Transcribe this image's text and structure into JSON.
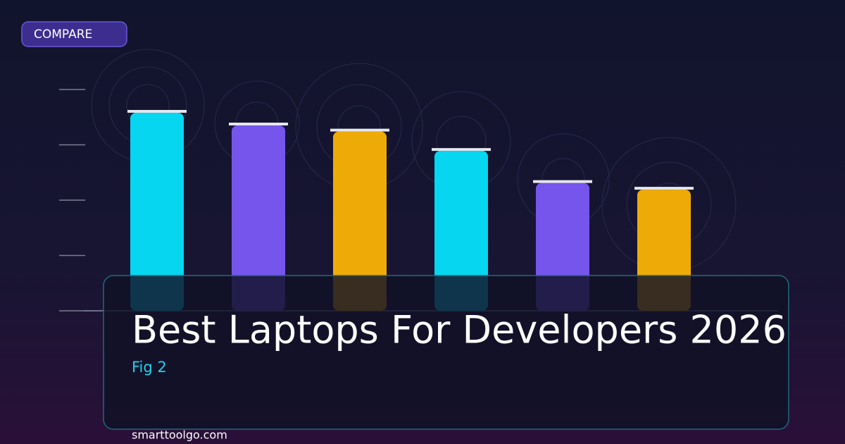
{
  "badge": "COMPARE",
  "footer": "smarttoolgo.com",
  "chart_data": {
    "type": "bar",
    "title": "Best Laptops For Developers 2026",
    "subtitle": "Fig 2",
    "categories": [
      null,
      null,
      null,
      null,
      null,
      null
    ],
    "values": [
      3.58,
      3.35,
      3.24,
      2.89,
      2.31,
      2.19
    ],
    "colors": [
      "#06d6f0",
      "#7655ec",
      "#eeab08",
      "#06d6f0",
      "#7655ec",
      "#eeab08"
    ],
    "ylim": [
      0,
      4
    ],
    "yticks": [
      0,
      1,
      2,
      3,
      4
    ],
    "grid": false
  }
}
